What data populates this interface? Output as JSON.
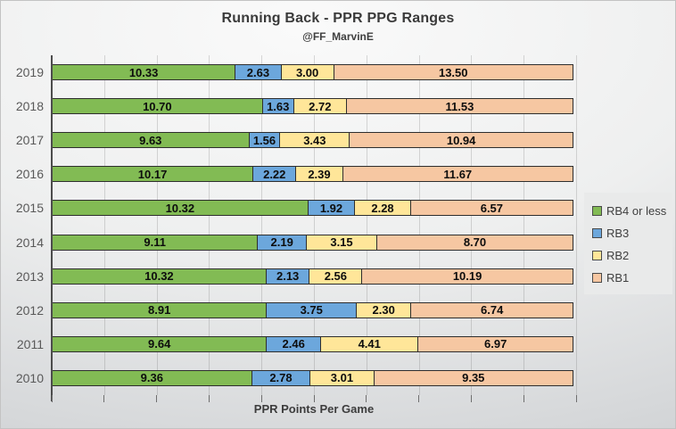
{
  "chart_data": {
    "type": "bar",
    "orientation": "horizontal",
    "stacked": true,
    "normalized_to_full_width": true,
    "title": "Running Back - PPR PPG Ranges",
    "subtitle": "@FF_MarvinE",
    "xlabel": "PPR Points Per Game",
    "legend_position": "right",
    "grid": true,
    "gridline_divisions": 10,
    "categories": [
      "2019",
      "2018",
      "2017",
      "2016",
      "2015",
      "2014",
      "2013",
      "2012",
      "2011",
      "2010"
    ],
    "series": [
      {
        "name": "RB4 or less",
        "color": "#82bb54",
        "values": [
          10.33,
          10.7,
          9.63,
          10.17,
          10.32,
          9.11,
          10.32,
          8.91,
          9.64,
          9.36
        ]
      },
      {
        "name": "RB3",
        "color": "#6ca7dc",
        "values": [
          2.63,
          1.63,
          1.56,
          2.22,
          1.92,
          2.19,
          2.13,
          3.75,
          2.46,
          2.78
        ]
      },
      {
        "name": "RB2",
        "color": "#ffe699",
        "values": [
          3.0,
          2.72,
          3.43,
          2.39,
          2.28,
          3.15,
          2.56,
          2.3,
          4.41,
          3.01
        ]
      },
      {
        "name": "RB1",
        "color": "#f6c7a2",
        "values": [
          13.5,
          11.53,
          10.94,
          11.67,
          6.57,
          8.7,
          10.19,
          6.74,
          6.97,
          9.35
        ]
      }
    ],
    "colors": {
      "axis": "#4c4c4c",
      "tick": "#6e6e6e",
      "value_label": "#0d0d0d",
      "segment_border": "#2e2e2e"
    }
  }
}
